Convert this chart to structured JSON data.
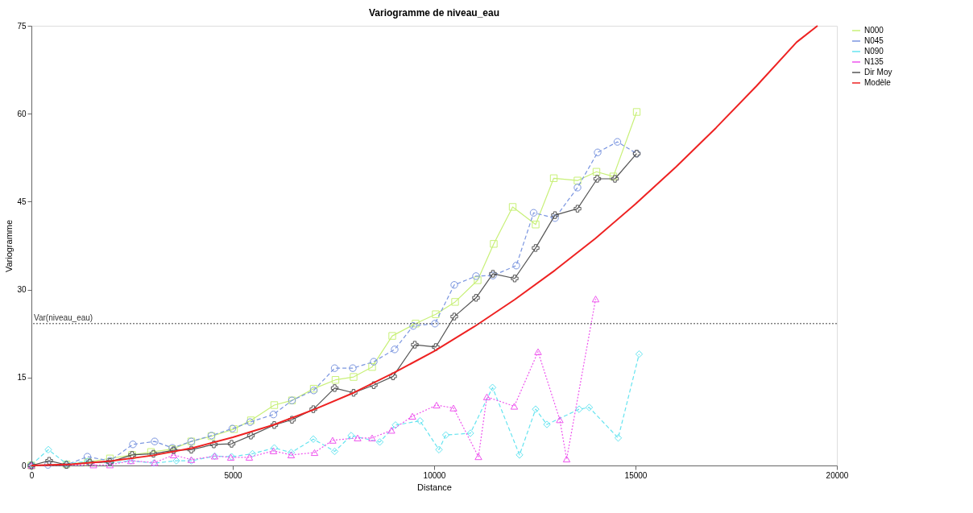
{
  "chart_data": {
    "type": "line",
    "title": "Variogramme de niveau_eau",
    "xlabel": "Distance",
    "ylabel": "Variogramme",
    "xlim": [
      0,
      20000
    ],
    "xticks": [
      0,
      5000,
      10000,
      15000,
      20000
    ],
    "ylim": [
      0,
      75
    ],
    "yticks": [
      0,
      15,
      30,
      45,
      60,
      75
    ],
    "grid": false,
    "legend": "top right",
    "series": [
      {
        "name": "N000",
        "color": "#c8f078",
        "marker": "square",
        "line_style": "solid",
        "x": [
          0,
          870,
          1400,
          1950,
          2500,
          2970,
          3500,
          3970,
          4470,
          5030,
          5450,
          6030,
          6470,
          7010,
          7550,
          8000,
          8460,
          8960,
          9540,
          10040,
          10520,
          11080,
          11480,
          11950,
          12520,
          12970,
          13560,
          14030,
          14450,
          15030
        ],
        "values": [
          0,
          0.2,
          0.6,
          1.2,
          1.8,
          2.3,
          2.8,
          4.1,
          5.0,
          6.2,
          7.7,
          10.3,
          11.1,
          13.1,
          14.6,
          15.1,
          16.8,
          22.1,
          24.2,
          25.8,
          27.9,
          31.6,
          37.8,
          44.1,
          41.1,
          49.0,
          48.6,
          50.1,
          49.3,
          60.3
        ]
      },
      {
        "name": "N045",
        "color": "#7b96e0",
        "marker": "circle",
        "line_style": "dashed",
        "x": [
          0,
          410,
          870,
          1390,
          1950,
          2520,
          3060,
          3500,
          3970,
          4470,
          4990,
          5430,
          6010,
          6470,
          7010,
          7530,
          7980,
          8500,
          9020,
          9480,
          10020,
          10500,
          11040,
          11460,
          12040,
          12470,
          13000,
          13560,
          14060,
          14550,
          15030
        ],
        "values": [
          0,
          0.1,
          0.1,
          1.5,
          0.8,
          3.6,
          4.1,
          3.0,
          4.1,
          5.1,
          6.3,
          7.4,
          8.7,
          11.1,
          12.8,
          16.6,
          16.6,
          17.7,
          19.8,
          23.8,
          24.2,
          30.8,
          32.3,
          32.4,
          34.1,
          43.1,
          42.2,
          47.4,
          53.4,
          55.2,
          53.2
        ]
      },
      {
        "name": "N090",
        "color": "#66e4f0",
        "marker": "diamond",
        "line_style": "dashed",
        "x": [
          0,
          420,
          870,
          1400,
          1950,
          2470,
          3040,
          3600,
          3970,
          4550,
          4970,
          5490,
          6030,
          6450,
          7000,
          7530,
          7940,
          8650,
          9040,
          9650,
          10120,
          10290,
          10900,
          11450,
          12120,
          12520,
          12800,
          13600,
          13850,
          14570,
          15090
        ],
        "values": [
          0.1,
          2.7,
          0.3,
          0.7,
          0.4,
          0.8,
          0.4,
          0.8,
          0.8,
          1.6,
          1.5,
          2.0,
          3.0,
          2.2,
          4.5,
          2.4,
          5.1,
          4.0,
          6.9,
          7.6,
          2.7,
          5.2,
          5.5,
          13.3,
          1.8,
          9.6,
          7.0,
          9.6,
          9.9,
          4.7,
          19.0
        ]
      },
      {
        "name": "N135",
        "color": "#ee55ee",
        "marker": "triangle",
        "line_style": "dotted",
        "x": [
          0,
          1540,
          1950,
          2470,
          3060,
          3530,
          3970,
          4550,
          4950,
          5410,
          6010,
          6450,
          7030,
          7480,
          8100,
          8460,
          8940,
          9460,
          10060,
          10480,
          11100,
          11310,
          11990,
          12580,
          13120,
          13290,
          14010
        ],
        "values": [
          0,
          0.1,
          0.1,
          0.8,
          0.5,
          1.8,
          1.0,
          1.6,
          1.4,
          1.4,
          2.5,
          1.8,
          2.2,
          4.3,
          4.7,
          4.7,
          6.0,
          8.4,
          10.3,
          9.8,
          1.5,
          11.7,
          10.1,
          19.4,
          7.8,
          1.1,
          28.4
        ]
      },
      {
        "name": "Dir Moy",
        "color": "#555555",
        "marker": "cross",
        "line_style": "solid",
        "x": [
          0,
          440,
          870,
          1450,
          1950,
          2500,
          3030,
          3530,
          3970,
          4530,
          4970,
          5450,
          6030,
          6470,
          7000,
          7530,
          8000,
          8500,
          8980,
          9520,
          10040,
          10500,
          11040,
          11460,
          12000,
          12520,
          13000,
          13560,
          14050,
          14490,
          15030
        ],
        "values": [
          0,
          0.8,
          0.1,
          0.5,
          0.6,
          1.8,
          2.0,
          2.6,
          2.7,
          3.6,
          3.7,
          5.1,
          6.9,
          7.8,
          9.6,
          13.2,
          12.4,
          13.7,
          15.2,
          20.6,
          20.2,
          25.4,
          28.6,
          32.7,
          31.9,
          37.1,
          42.7,
          43.8,
          48.9,
          48.9,
          53.2
        ]
      },
      {
        "name": "Modèle",
        "color": "#ee2222",
        "marker": "none",
        "line_style": "solid",
        "x": [
          0,
          1000,
          2000,
          3000,
          4000,
          5000,
          6000,
          7000,
          8000,
          9000,
          10000,
          11000,
          12000,
          13000,
          14000,
          15000,
          16000,
          17000,
          18000,
          19000,
          19520
        ],
        "values": [
          0,
          0.2,
          0.8,
          1.7,
          3.0,
          4.8,
          6.9,
          9.5,
          12.4,
          15.8,
          19.5,
          23.7,
          28.3,
          33.3,
          38.7,
          44.6,
          50.9,
          57.6,
          64.7,
          72.2,
          75
        ]
      }
    ],
    "ref_lines": [
      {
        "axis": "y",
        "value": 24.2,
        "label": "Var(niveau_eau)",
        "color": "#444444",
        "line_style": "dotted"
      }
    ]
  }
}
